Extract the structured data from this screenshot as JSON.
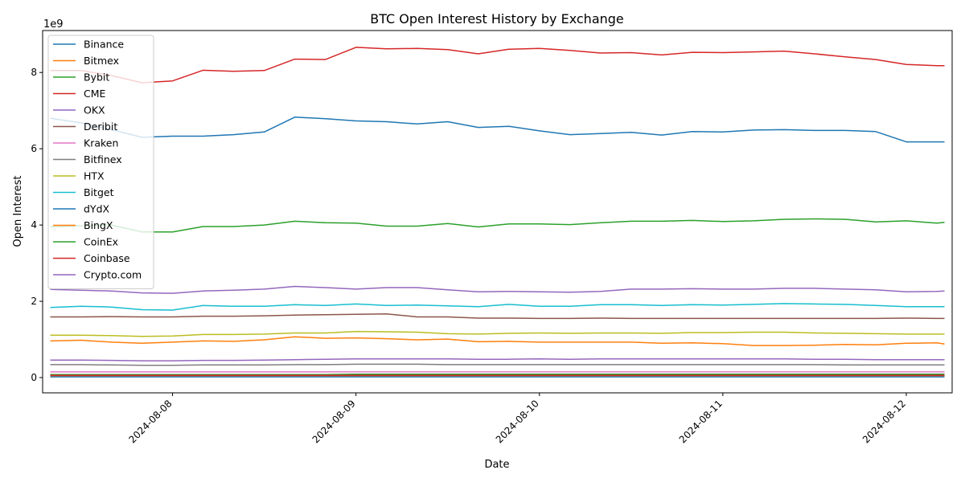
{
  "chart_data": {
    "type": "line",
    "title": "BTC Open Interest History by Exchange",
    "xlabel": "Date",
    "ylabel": "Open Interest",
    "y_offset_label": "1e9",
    "y_scale": 1000000000,
    "x_range": [
      "2024-08-07 07:00",
      "2024-08-12 06:00"
    ],
    "ylim": [
      -400000000,
      9100000000
    ],
    "x_ticks": [
      "2024-08-08",
      "2024-08-09",
      "2024-08-10",
      "2024-08-11",
      "2024-08-12"
    ],
    "y_ticks": [
      0,
      2000000000,
      4000000000,
      6000000000,
      8000000000
    ],
    "y_tick_labels": [
      "0",
      "2",
      "4",
      "6",
      "8"
    ],
    "grid": false,
    "legend_position": "top-left",
    "x": [
      "2024-08-07 08:00",
      "2024-08-07 12:00",
      "2024-08-07 16:00",
      "2024-08-07 20:00",
      "2024-08-08 00:00",
      "2024-08-08 04:00",
      "2024-08-08 08:00",
      "2024-08-08 12:00",
      "2024-08-08 16:00",
      "2024-08-08 20:00",
      "2024-08-09 00:00",
      "2024-08-09 04:00",
      "2024-08-09 08:00",
      "2024-08-09 12:00",
      "2024-08-09 16:00",
      "2024-08-09 20:00",
      "2024-08-10 00:00",
      "2024-08-10 04:00",
      "2024-08-10 08:00",
      "2024-08-10 12:00",
      "2024-08-10 16:00",
      "2024-08-10 20:00",
      "2024-08-11 00:00",
      "2024-08-11 04:00",
      "2024-08-11 08:00",
      "2024-08-11 12:00",
      "2024-08-11 16:00",
      "2024-08-11 20:00",
      "2024-08-12 00:00",
      "2024-08-12 04:00",
      "2024-08-12 05:00"
    ],
    "series": [
      {
        "name": "Binance",
        "color": "#1f77b4",
        "values": [
          6800000000,
          6680000000,
          6500000000,
          6300000000,
          6330000000,
          6330000000,
          6370000000,
          6440000000,
          6830000000,
          6790000000,
          6730000000,
          6710000000,
          6650000000,
          6710000000,
          6560000000,
          6590000000,
          6470000000,
          6370000000,
          6400000000,
          6430000000,
          6360000000,
          6450000000,
          6440000000,
          6490000000,
          6500000000,
          6480000000,
          6480000000,
          6450000000,
          6180000000,
          6180000000,
          6180000000
        ]
      },
      {
        "name": "Bitmex",
        "color": "#ff7f0e",
        "values": [
          40000000,
          40000000,
          40000000,
          40000000,
          40000000,
          40000000,
          40000000,
          40000000,
          40000000,
          40000000,
          40000000,
          40000000,
          40000000,
          40000000,
          40000000,
          40000000,
          40000000,
          40000000,
          40000000,
          40000000,
          40000000,
          40000000,
          40000000,
          40000000,
          40000000,
          40000000,
          40000000,
          40000000,
          40000000,
          40000000,
          40000000
        ]
      },
      {
        "name": "Bybit",
        "color": "#2ca02c",
        "values": [
          3950000000,
          3980000000,
          4000000000,
          3820000000,
          3820000000,
          3960000000,
          3960000000,
          4000000000,
          4100000000,
          4060000000,
          4050000000,
          3970000000,
          3970000000,
          4040000000,
          3950000000,
          4030000000,
          4030000000,
          4010000000,
          4060000000,
          4100000000,
          4100000000,
          4120000000,
          4090000000,
          4110000000,
          4150000000,
          4160000000,
          4150000000,
          4080000000,
          4110000000,
          4050000000,
          4070000000
        ]
      },
      {
        "name": "CME",
        "color": "#d62728",
        "values": [
          8050000000,
          8050000000,
          7920000000,
          7730000000,
          7780000000,
          8060000000,
          8030000000,
          8050000000,
          8350000000,
          8340000000,
          8660000000,
          8620000000,
          8630000000,
          8600000000,
          8490000000,
          8610000000,
          8630000000,
          8580000000,
          8510000000,
          8520000000,
          8460000000,
          8530000000,
          8520000000,
          8540000000,
          8560000000,
          8490000000,
          8410000000,
          8340000000,
          8210000000,
          8180000000,
          8180000000
        ]
      },
      {
        "name": "OKX",
        "color": "#9467bd",
        "values": [
          460000000,
          460000000,
          450000000,
          440000000,
          440000000,
          450000000,
          450000000,
          460000000,
          470000000,
          480000000,
          490000000,
          490000000,
          490000000,
          490000000,
          480000000,
          480000000,
          490000000,
          480000000,
          490000000,
          490000000,
          490000000,
          490000000,
          490000000,
          490000000,
          490000000,
          480000000,
          480000000,
          470000000,
          470000000,
          470000000,
          470000000
        ]
      },
      {
        "name": "Deribit",
        "color": "#8c564b",
        "values": [
          1590000000,
          1590000000,
          1600000000,
          1590000000,
          1590000000,
          1610000000,
          1610000000,
          1620000000,
          1640000000,
          1650000000,
          1660000000,
          1670000000,
          1590000000,
          1590000000,
          1560000000,
          1560000000,
          1550000000,
          1550000000,
          1560000000,
          1550000000,
          1550000000,
          1550000000,
          1550000000,
          1550000000,
          1550000000,
          1550000000,
          1550000000,
          1550000000,
          1560000000,
          1550000000,
          1550000000
        ]
      },
      {
        "name": "Kraken",
        "color": "#e377c2",
        "values": [
          150000000,
          150000000,
          150000000,
          150000000,
          150000000,
          150000000,
          150000000,
          150000000,
          150000000,
          150000000,
          150000000,
          150000000,
          150000000,
          150000000,
          150000000,
          150000000,
          150000000,
          150000000,
          150000000,
          150000000,
          150000000,
          150000000,
          150000000,
          150000000,
          150000000,
          150000000,
          150000000,
          150000000,
          150000000,
          150000000,
          150000000
        ]
      },
      {
        "name": "Bitfinex",
        "color": "#7f7f7f",
        "values": [
          340000000,
          340000000,
          330000000,
          320000000,
          320000000,
          330000000,
          330000000,
          330000000,
          340000000,
          340000000,
          350000000,
          350000000,
          350000000,
          340000000,
          340000000,
          340000000,
          340000000,
          340000000,
          340000000,
          340000000,
          340000000,
          340000000,
          340000000,
          340000000,
          340000000,
          340000000,
          330000000,
          330000000,
          330000000,
          330000000,
          330000000
        ]
      },
      {
        "name": "HTX",
        "color": "#bcbd22",
        "values": [
          1110000000,
          1110000000,
          1100000000,
          1080000000,
          1090000000,
          1130000000,
          1130000000,
          1140000000,
          1170000000,
          1170000000,
          1210000000,
          1200000000,
          1190000000,
          1150000000,
          1140000000,
          1160000000,
          1170000000,
          1160000000,
          1170000000,
          1170000000,
          1160000000,
          1180000000,
          1180000000,
          1190000000,
          1190000000,
          1170000000,
          1160000000,
          1150000000,
          1140000000,
          1140000000,
          1140000000
        ]
      },
      {
        "name": "Bitget",
        "color": "#17becf",
        "values": [
          1840000000,
          1870000000,
          1850000000,
          1780000000,
          1770000000,
          1890000000,
          1870000000,
          1870000000,
          1910000000,
          1890000000,
          1930000000,
          1890000000,
          1900000000,
          1880000000,
          1860000000,
          1920000000,
          1870000000,
          1870000000,
          1910000000,
          1910000000,
          1890000000,
          1910000000,
          1900000000,
          1920000000,
          1940000000,
          1930000000,
          1920000000,
          1890000000,
          1860000000,
          1860000000,
          1860000000
        ]
      },
      {
        "name": "dYdX",
        "color": "#1f77b4",
        "values": [
          20000000,
          20000000,
          20000000,
          20000000,
          20000000,
          20000000,
          20000000,
          20000000,
          20000000,
          20000000,
          20000000,
          20000000,
          20000000,
          20000000,
          20000000,
          20000000,
          20000000,
          20000000,
          20000000,
          20000000,
          20000000,
          20000000,
          20000000,
          20000000,
          20000000,
          20000000,
          20000000,
          20000000,
          20000000,
          20000000,
          20000000
        ]
      },
      {
        "name": "BingX",
        "color": "#ff7f0e",
        "values": [
          960000000,
          980000000,
          930000000,
          900000000,
          930000000,
          960000000,
          950000000,
          990000000,
          1070000000,
          1030000000,
          1040000000,
          1020000000,
          990000000,
          1010000000,
          940000000,
          950000000,
          930000000,
          930000000,
          930000000,
          930000000,
          900000000,
          910000000,
          890000000,
          840000000,
          840000000,
          850000000,
          870000000,
          860000000,
          900000000,
          910000000,
          880000000
        ]
      },
      {
        "name": "CoinEx",
        "color": "#2ca02c",
        "values": [
          80000000,
          80000000,
          80000000,
          80000000,
          80000000,
          80000000,
          80000000,
          80000000,
          80000000,
          80000000,
          90000000,
          90000000,
          90000000,
          90000000,
          90000000,
          90000000,
          90000000,
          90000000,
          90000000,
          90000000,
          90000000,
          90000000,
          90000000,
          90000000,
          90000000,
          90000000,
          90000000,
          90000000,
          90000000,
          90000000,
          90000000
        ]
      },
      {
        "name": "Coinbase",
        "color": "#d62728",
        "values": [
          60000000,
          60000000,
          60000000,
          60000000,
          60000000,
          60000000,
          60000000,
          60000000,
          60000000,
          60000000,
          60000000,
          60000000,
          60000000,
          60000000,
          60000000,
          60000000,
          60000000,
          60000000,
          60000000,
          60000000,
          60000000,
          60000000,
          60000000,
          60000000,
          60000000,
          60000000,
          60000000,
          60000000,
          60000000,
          60000000,
          60000000
        ]
      },
      {
        "name": "Crypto.com",
        "color": "#9467bd",
        "values": [
          2310000000,
          2290000000,
          2270000000,
          2220000000,
          2210000000,
          2270000000,
          2290000000,
          2320000000,
          2390000000,
          2360000000,
          2320000000,
          2360000000,
          2360000000,
          2300000000,
          2250000000,
          2260000000,
          2250000000,
          2240000000,
          2260000000,
          2320000000,
          2320000000,
          2330000000,
          2320000000,
          2320000000,
          2340000000,
          2340000000,
          2320000000,
          2300000000,
          2250000000,
          2260000000,
          2270000000
        ]
      }
    ]
  }
}
